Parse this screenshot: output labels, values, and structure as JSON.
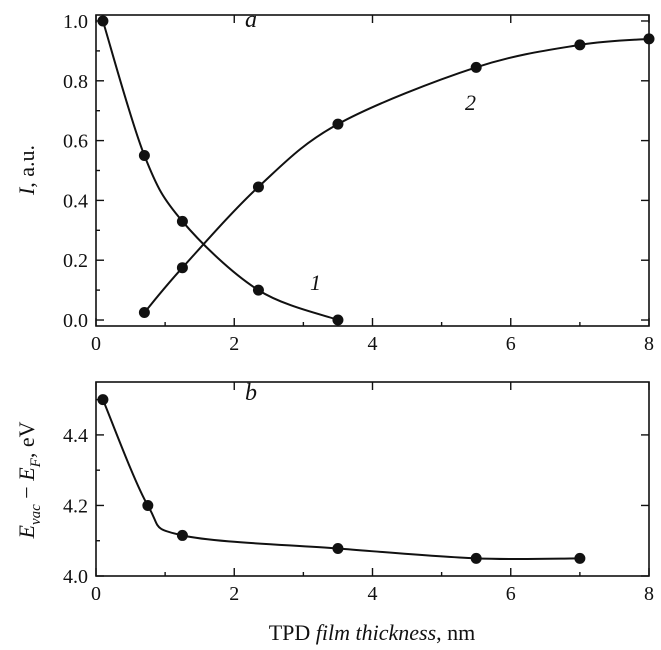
{
  "chart_data": [
    {
      "type": "scatter",
      "panel": "a",
      "ylabel": "I, a.u.",
      "xlim": [
        0,
        8
      ],
      "ylim": [
        -0.02,
        1.02
      ],
      "xticks": [
        "0",
        "2",
        "4",
        "6",
        "8"
      ],
      "yticks": [
        "0.0",
        "0.2",
        "0.4",
        "0.6",
        "0.8",
        "1.0"
      ],
      "series": [
        {
          "name": "1",
          "x": [
            0.1,
            0.7,
            1.25,
            2.35,
            3.5
          ],
          "y": [
            1.0,
            0.55,
            0.33,
            0.1,
            0.0
          ]
        },
        {
          "name": "2",
          "x": [
            0.7,
            1.25,
            2.35,
            3.5,
            5.5,
            7.0,
            8.0
          ],
          "y": [
            0.025,
            0.175,
            0.445,
            0.655,
            0.845,
            0.92,
            0.94
          ]
        }
      ]
    },
    {
      "type": "scatter",
      "panel": "b",
      "xlabel": "TPD film thickness, nm",
      "ylabel": "E_vac − E_F, eV",
      "xlim": [
        0,
        8
      ],
      "ylim": [
        4.0,
        4.55
      ],
      "xticks": [
        "0",
        "2",
        "4",
        "6",
        "8"
      ],
      "yticks": [
        "4.0",
        "4.2",
        "4.4"
      ],
      "series": [
        {
          "x": [
            0.1,
            0.75,
            1.25,
            3.5,
            5.5,
            7.0
          ],
          "y": [
            4.5,
            4.2,
            4.115,
            4.078,
            4.05,
            4.05
          ]
        }
      ]
    }
  ],
  "text": {
    "panel_a": "a",
    "panel_b": "b",
    "curve1": "1",
    "curve2": "2",
    "ylabel_a_italic": "I",
    "ylabel_a_rest": ", a.u.",
    "ylabel_b_E1": "E",
    "ylabel_b_sub1": "vac",
    "ylabel_b_minus": " − ",
    "ylabel_b_E2": "E",
    "ylabel_b_sub2": "F",
    "ylabel_b_unit": ", eV",
    "xlabel_prefix": "TPD ",
    "xlabel_italic": "film thickness",
    "xlabel_unit": ", nm"
  }
}
